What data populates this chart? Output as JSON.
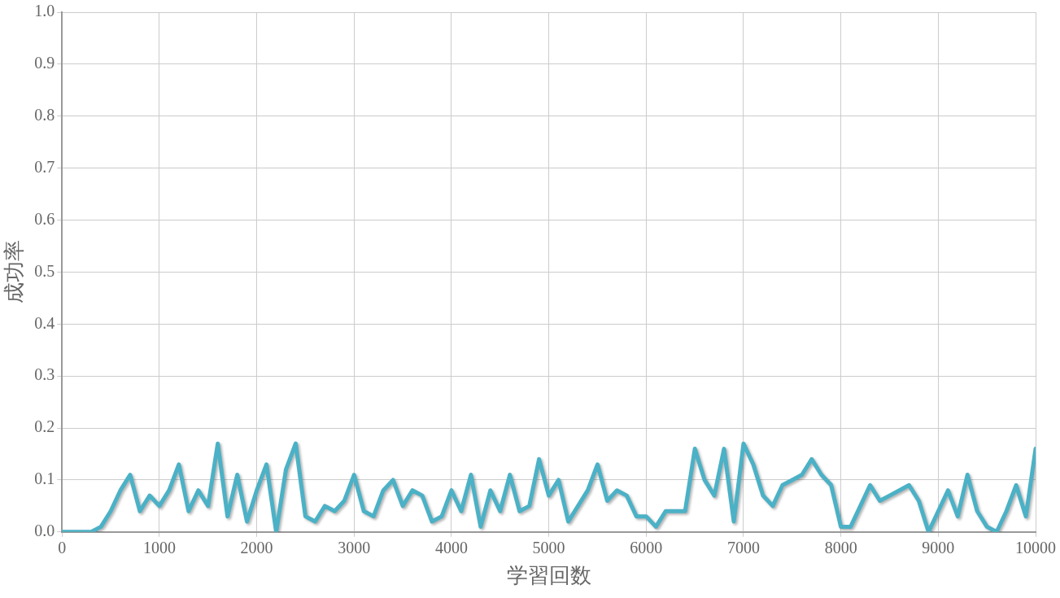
{
  "chart_data": {
    "type": "line",
    "xlabel": "学習回数",
    "ylabel": "成功率",
    "x": [
      0,
      100,
      200,
      300,
      400,
      500,
      600,
      700,
      800,
      900,
      1000,
      1100,
      1200,
      1300,
      1400,
      1500,
      1600,
      1700,
      1800,
      1900,
      2000,
      2100,
      2200,
      2300,
      2400,
      2500,
      2600,
      2700,
      2800,
      2900,
      3000,
      3100,
      3200,
      3300,
      3400,
      3500,
      3600,
      3700,
      3800,
      3900,
      4000,
      4100,
      4200,
      4300,
      4400,
      4500,
      4600,
      4700,
      4800,
      4900,
      5000,
      5100,
      5200,
      5300,
      5400,
      5500,
      5600,
      5700,
      5800,
      5900,
      6000,
      6100,
      6200,
      6300,
      6400,
      6500,
      6600,
      6700,
      6800,
      6900,
      7000,
      7100,
      7200,
      7300,
      7400,
      7500,
      7600,
      7700,
      7800,
      7900,
      8000,
      8100,
      8200,
      8300,
      8400,
      8500,
      8600,
      8700,
      8800,
      8900,
      9000,
      9100,
      9200,
      9300,
      9400,
      9500,
      9600,
      9700,
      9800,
      9900,
      10000
    ],
    "series": [
      {
        "color": "#4bb1c6",
        "values": [
          0,
          0,
          0,
          0,
          0.01,
          0.04,
          0.08,
          0.11,
          0.04,
          0.07,
          0.05,
          0.08,
          0.13,
          0.04,
          0.08,
          0.05,
          0.17,
          0.03,
          0.11,
          0.02,
          0.08,
          0.13,
          0,
          0.12,
          0.17,
          0.03,
          0.02,
          0.05,
          0.04,
          0.06,
          0.11,
          0.04,
          0.03,
          0.08,
          0.1,
          0.05,
          0.08,
          0.07,
          0.02,
          0.03,
          0.08,
          0.04,
          0.11,
          0.01,
          0.08,
          0.04,
          0.11,
          0.04,
          0.05,
          0.14,
          0.07,
          0.1,
          0.02,
          0.05,
          0.08,
          0.13,
          0.06,
          0.08,
          0.07,
          0.03,
          0.03,
          0.01,
          0.04,
          0.04,
          0.04,
          0.16,
          0.1,
          0.07,
          0.16,
          0.02,
          0.17,
          0.13,
          0.07,
          0.05,
          0.09,
          0.1,
          0.11,
          0.14,
          0.11,
          0.09,
          0.01,
          0.01,
          0.05,
          0.09,
          0.06,
          0.07,
          0.08,
          0.09,
          0.06,
          0,
          0.04,
          0.08,
          0.03,
          0.11,
          0.04,
          0.01,
          0,
          0.04,
          0.09,
          0.03,
          0.16
        ]
      }
    ],
    "xlim": [
      0,
      10000
    ],
    "xticks": [
      0,
      1000,
      2000,
      3000,
      4000,
      5000,
      6000,
      7000,
      8000,
      9000,
      10000
    ],
    "ylim": [
      0,
      1
    ],
    "yticks": [
      {
        "value": 0,
        "label": "0.0"
      },
      {
        "value": 0.1,
        "label": "0.1"
      },
      {
        "value": 0.2,
        "label": "0.2"
      },
      {
        "value": 0.3,
        "label": "0.3"
      },
      {
        "value": 0.4,
        "label": "0.4"
      },
      {
        "value": 0.5,
        "label": "0.5"
      },
      {
        "value": 0.6,
        "label": "0.6"
      },
      {
        "value": 0.7,
        "label": "0.7"
      },
      {
        "value": 0.8,
        "label": "0.8"
      },
      {
        "value": 0.9,
        "label": "0.9"
      },
      {
        "value": 1,
        "label": "1.0"
      }
    ],
    "grid": true,
    "legend": false,
    "marker": "none",
    "line_style": "solid"
  }
}
